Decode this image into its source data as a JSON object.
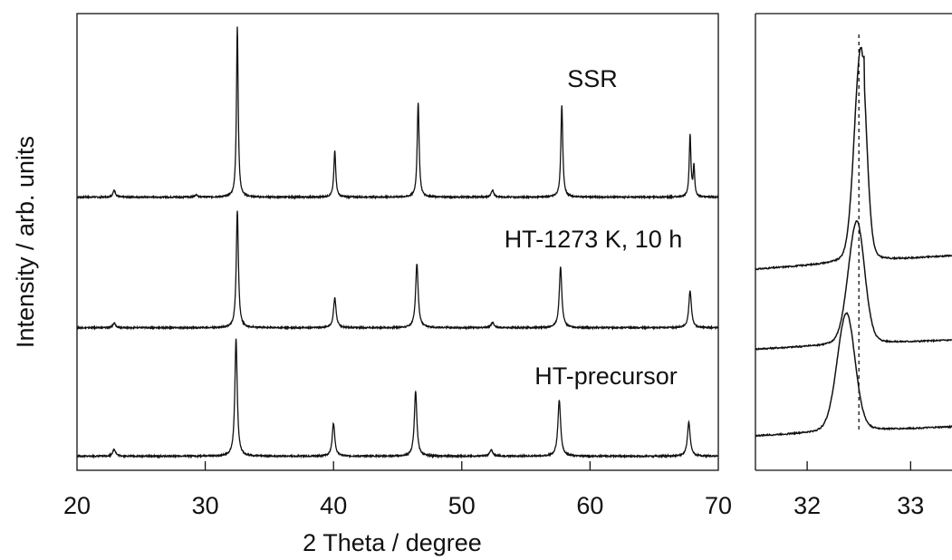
{
  "chart_data": [
    {
      "type": "line",
      "xlabel": "2 Theta / degree",
      "ylabel": "Intensity / arb. units",
      "xlim": [
        20,
        70
      ],
      "ylim": [
        0,
        1.07
      ],
      "xticks": [
        20,
        30,
        40,
        50,
        60,
        70
      ],
      "grid": false,
      "legend": "none",
      "series": [
        {
          "name": "SSR",
          "baseline": 0.64,
          "peaks": [
            {
              "x": 22.9,
              "h": 0.016,
              "w": 0.12
            },
            {
              "x": 29.3,
              "h": 0.006,
              "w": 0.12
            },
            {
              "x": 32.5,
              "h": 0.4,
              "w": 0.08
            },
            {
              "x": 40.1,
              "h": 0.108,
              "w": 0.09
            },
            {
              "x": 46.6,
              "h": 0.222,
              "w": 0.09
            },
            {
              "x": 52.4,
              "h": 0.016,
              "w": 0.12
            },
            {
              "x": 57.8,
              "h": 0.214,
              "w": 0.09
            },
            {
              "x": 67.8,
              "h": 0.144,
              "w": 0.08
            },
            {
              "x": 68.1,
              "h": 0.07,
              "w": 0.07
            }
          ]
        },
        {
          "name": "HT-1273 K, 10 h",
          "baseline": 0.334,
          "peaks": [
            {
              "x": 22.9,
              "h": 0.012,
              "w": 0.12
            },
            {
              "x": 32.5,
              "h": 0.274,
              "w": 0.1
            },
            {
              "x": 40.1,
              "h": 0.07,
              "w": 0.12
            },
            {
              "x": 46.5,
              "h": 0.15,
              "w": 0.12
            },
            {
              "x": 52.4,
              "h": 0.012,
              "w": 0.14
            },
            {
              "x": 57.7,
              "h": 0.142,
              "w": 0.12
            },
            {
              "x": 67.8,
              "h": 0.087,
              "w": 0.12
            }
          ]
        },
        {
          "name": "HT-precursor",
          "baseline": 0.033,
          "peaks": [
            {
              "x": 22.9,
              "h": 0.016,
              "w": 0.14
            },
            {
              "x": 32.4,
              "h": 0.276,
              "w": 0.11
            },
            {
              "x": 40.0,
              "h": 0.077,
              "w": 0.12
            },
            {
              "x": 46.4,
              "h": 0.152,
              "w": 0.12
            },
            {
              "x": 52.3,
              "h": 0.014,
              "w": 0.15
            },
            {
              "x": 57.6,
              "h": 0.131,
              "w": 0.13
            },
            {
              "x": 67.7,
              "h": 0.079,
              "w": 0.13
            }
          ]
        }
      ]
    },
    {
      "type": "line",
      "xlabel": "",
      "ylabel": "",
      "xlim": [
        31.5,
        33.4
      ],
      "ylim": [
        0,
        1
      ],
      "xticks": [
        32,
        33
      ],
      "reference_line_x": 32.5,
      "grid": false,
      "legend": "none",
      "series": [
        {
          "baseline": 0.44,
          "peak_x": 32.52,
          "peak_h": 0.47,
          "w_left": 0.085,
          "w_right": 0.07,
          "tail": 0.03,
          "flat_top": true
        },
        {
          "baseline": 0.265,
          "peak_x": 32.48,
          "peak_h": 0.27,
          "w_left": 0.11,
          "w_right": 0.1,
          "tail": 0.02,
          "flat_top": false
        },
        {
          "baseline": 0.075,
          "peak_x": 32.38,
          "peak_h": 0.26,
          "w_left": 0.12,
          "w_right": 0.11,
          "tail": 0.02,
          "flat_top": false
        }
      ]
    }
  ],
  "labels": {
    "ssr": "SSR",
    "ht1273": "HT-1273 K, 10 h",
    "htprecursor": "HT-precursor"
  }
}
